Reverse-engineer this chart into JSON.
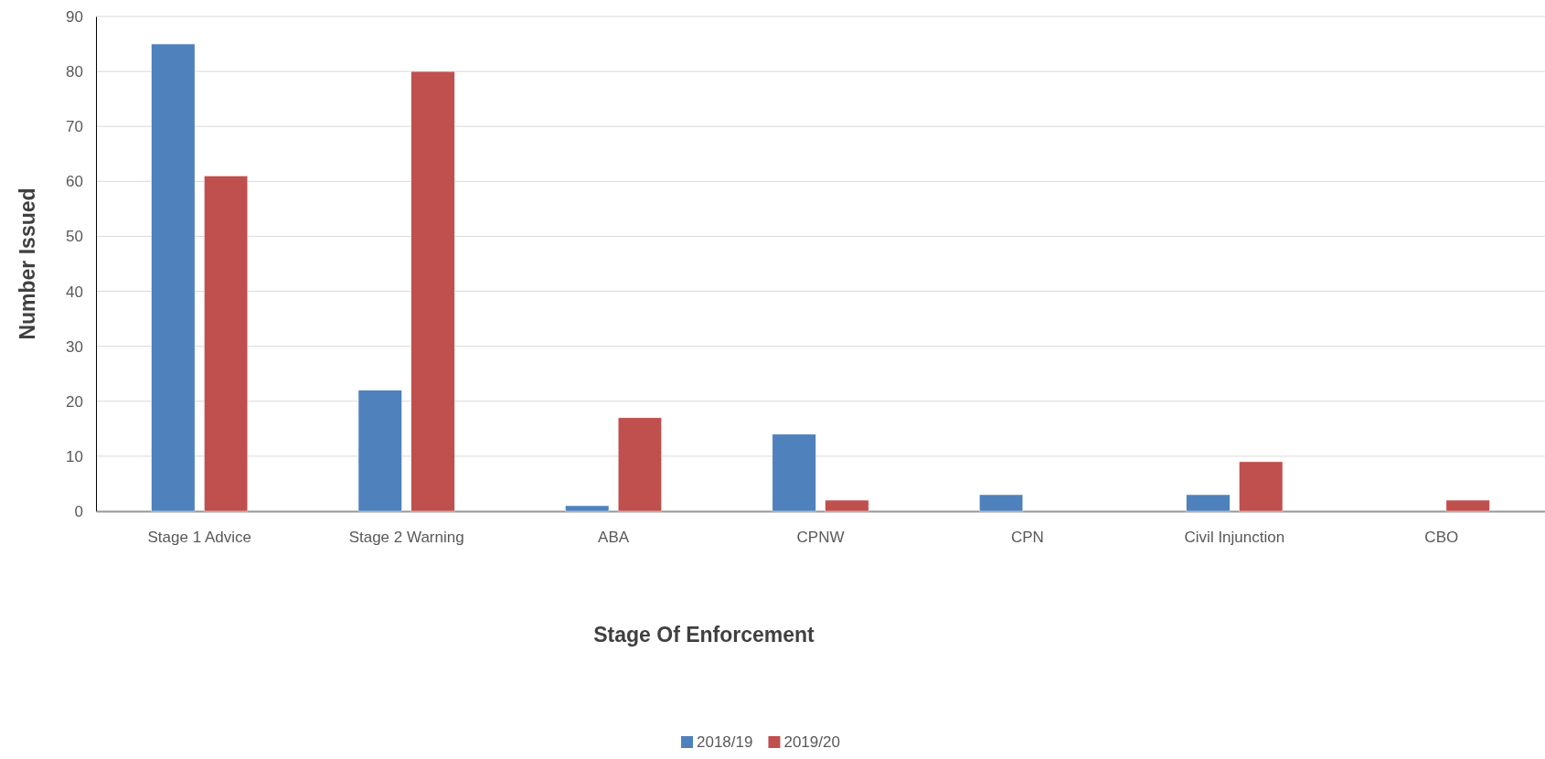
{
  "chart_data": {
    "type": "bar",
    "xlabel": "Stage Of Enforcement",
    "ylabel": "Number Issued",
    "categories": [
      "Stage 1 Advice",
      "Stage 2 Warning",
      "ABA",
      "CPNW",
      "CPN",
      "Civil Injunction",
      "CBO"
    ],
    "series": [
      {
        "name": "2018/19",
        "color": "#4f81bd",
        "values": [
          85,
          22,
          1,
          14,
          3,
          3,
          0
        ]
      },
      {
        "name": "2019/20",
        "color": "#c0504d",
        "values": [
          61,
          80,
          17,
          2,
          0,
          9,
          2
        ]
      }
    ],
    "ylim": [
      0,
      90
    ],
    "yticks": [
      0,
      10,
      20,
      30,
      40,
      50,
      60,
      70,
      80,
      90
    ],
    "grid": "y",
    "legend": "bottom"
  }
}
